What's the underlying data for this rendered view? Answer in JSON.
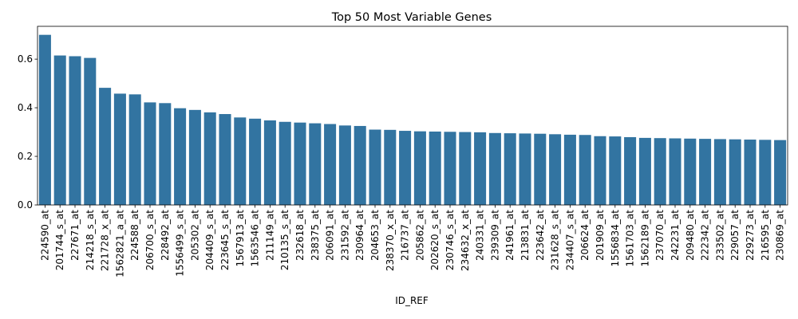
{
  "chart_data": {
    "type": "bar",
    "title": "Top 50 Most Variable Genes",
    "xlabel": "ID_REF",
    "ylabel": "",
    "ylim": [
      0,
      0.735
    ],
    "yticks": [
      0.0,
      0.2,
      0.4,
      0.6
    ],
    "ytick_labels": [
      "0.0",
      "0.2",
      "0.4",
      "0.6"
    ],
    "grid": false,
    "legend": "none",
    "bar_color": "#3274a1",
    "categories": [
      "224590_at",
      "201744_s_at",
      "227671_at",
      "214218_s_at",
      "221728_x_at",
      "1562821_a_at",
      "224588_at",
      "206700_s_at",
      "228492_at",
      "1556499_s_at",
      "205302_at",
      "204409_s_at",
      "223645_s_at",
      "1567913_at",
      "1563546_at",
      "211149_at",
      "210135_s_at",
      "232618_at",
      "238375_at",
      "206091_at",
      "231592_at",
      "230964_at",
      "204653_at",
      "238370_x_at",
      "216737_at",
      "205862_at",
      "202620_s_at",
      "230746_s_at",
      "234632_x_at",
      "240331_at",
      "239309_at",
      "241961_at",
      "213831_at",
      "223642_at",
      "231628_s_at",
      "234407_s_at",
      "206624_at",
      "201909_at",
      "1556834_at",
      "1561703_at",
      "1562189_at",
      "237070_at",
      "242231_at",
      "209480_at",
      "222342_at",
      "233502_at",
      "229057_at",
      "229273_at",
      "216595_at",
      "230869_at"
    ],
    "values": [
      0.7,
      0.615,
      0.612,
      0.605,
      0.482,
      0.458,
      0.455,
      0.422,
      0.419,
      0.398,
      0.391,
      0.381,
      0.374,
      0.36,
      0.355,
      0.348,
      0.342,
      0.339,
      0.336,
      0.333,
      0.327,
      0.325,
      0.31,
      0.309,
      0.305,
      0.303,
      0.302,
      0.301,
      0.3,
      0.299,
      0.296,
      0.295,
      0.294,
      0.293,
      0.291,
      0.289,
      0.288,
      0.283,
      0.282,
      0.279,
      0.276,
      0.275,
      0.274,
      0.273,
      0.272,
      0.271,
      0.27,
      0.269,
      0.268,
      0.267
    ]
  }
}
